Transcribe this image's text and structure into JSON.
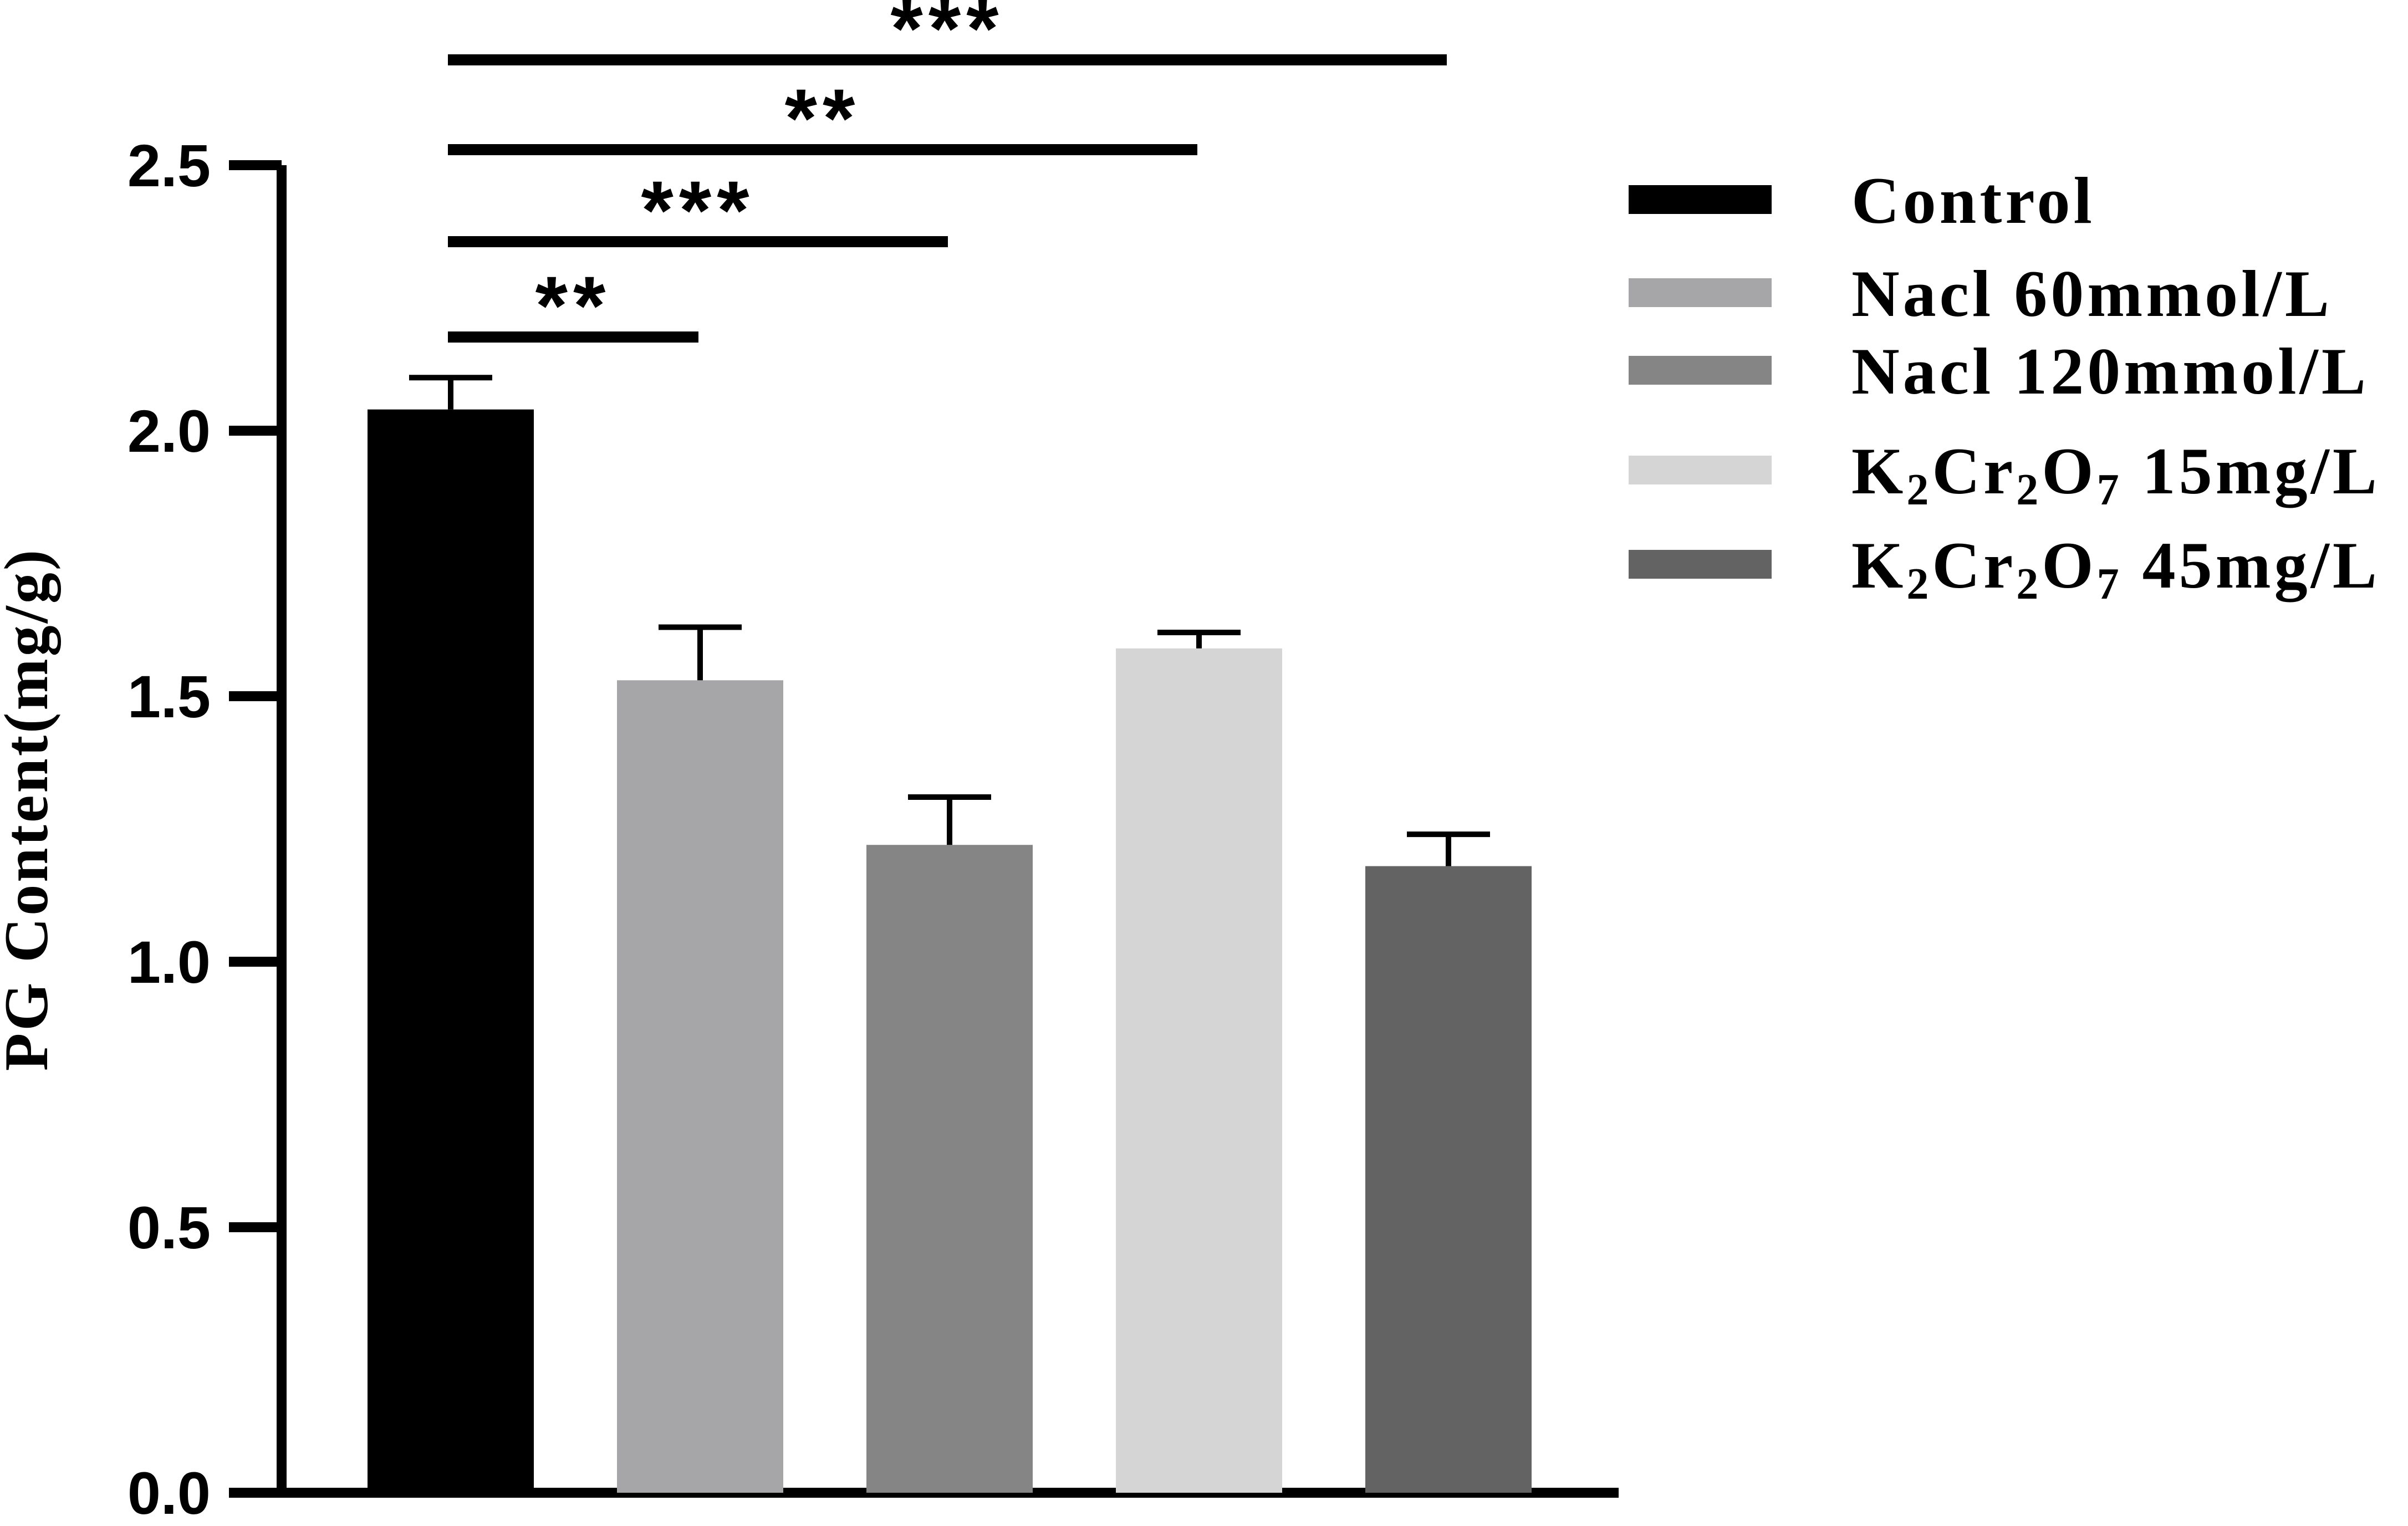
{
  "chart_data": {
    "type": "bar",
    "ylabel": "PG Content(mg/g)",
    "ylim": [
      0,
      2.5
    ],
    "yticks": [
      "0.0",
      "0.5",
      "1.0",
      "1.5",
      "2.0",
      "2.5"
    ],
    "categories": [
      "Control",
      "Nacl 60mmol/L",
      "Nacl 120mmol/L",
      "K2Cr2O7 15mg/L",
      "K2Cr2O7 45mg/L"
    ],
    "values": [
      2.04,
      1.53,
      1.22,
      1.59,
      1.18
    ],
    "errors": [
      0.06,
      0.1,
      0.09,
      0.03,
      0.06
    ],
    "colors": [
      "#000000",
      "#a6a6a9",
      "#858585",
      "#d5d5d5",
      "#636363"
    ],
    "legend": {
      "position": "right",
      "entries": [
        {
          "label": "Control"
        },
        {
          "label": "Nacl 60mmol/L"
        },
        {
          "label": "Nacl 120mmol/L"
        },
        {
          "label_parts": [
            "K",
            "2",
            "Cr",
            "2",
            "O",
            "7",
            " 15mg/L"
          ]
        },
        {
          "label_parts": [
            "K",
            "2",
            "Cr",
            "2",
            "O",
            "7",
            " 45mg/L"
          ]
        }
      ]
    },
    "significance": [
      {
        "from": 0,
        "to": 1,
        "label": "**"
      },
      {
        "from": 0,
        "to": 2,
        "label": "***"
      },
      {
        "from": 0,
        "to": 3,
        "label": "**"
      },
      {
        "from": 0,
        "to": 4,
        "label": "***"
      }
    ]
  }
}
